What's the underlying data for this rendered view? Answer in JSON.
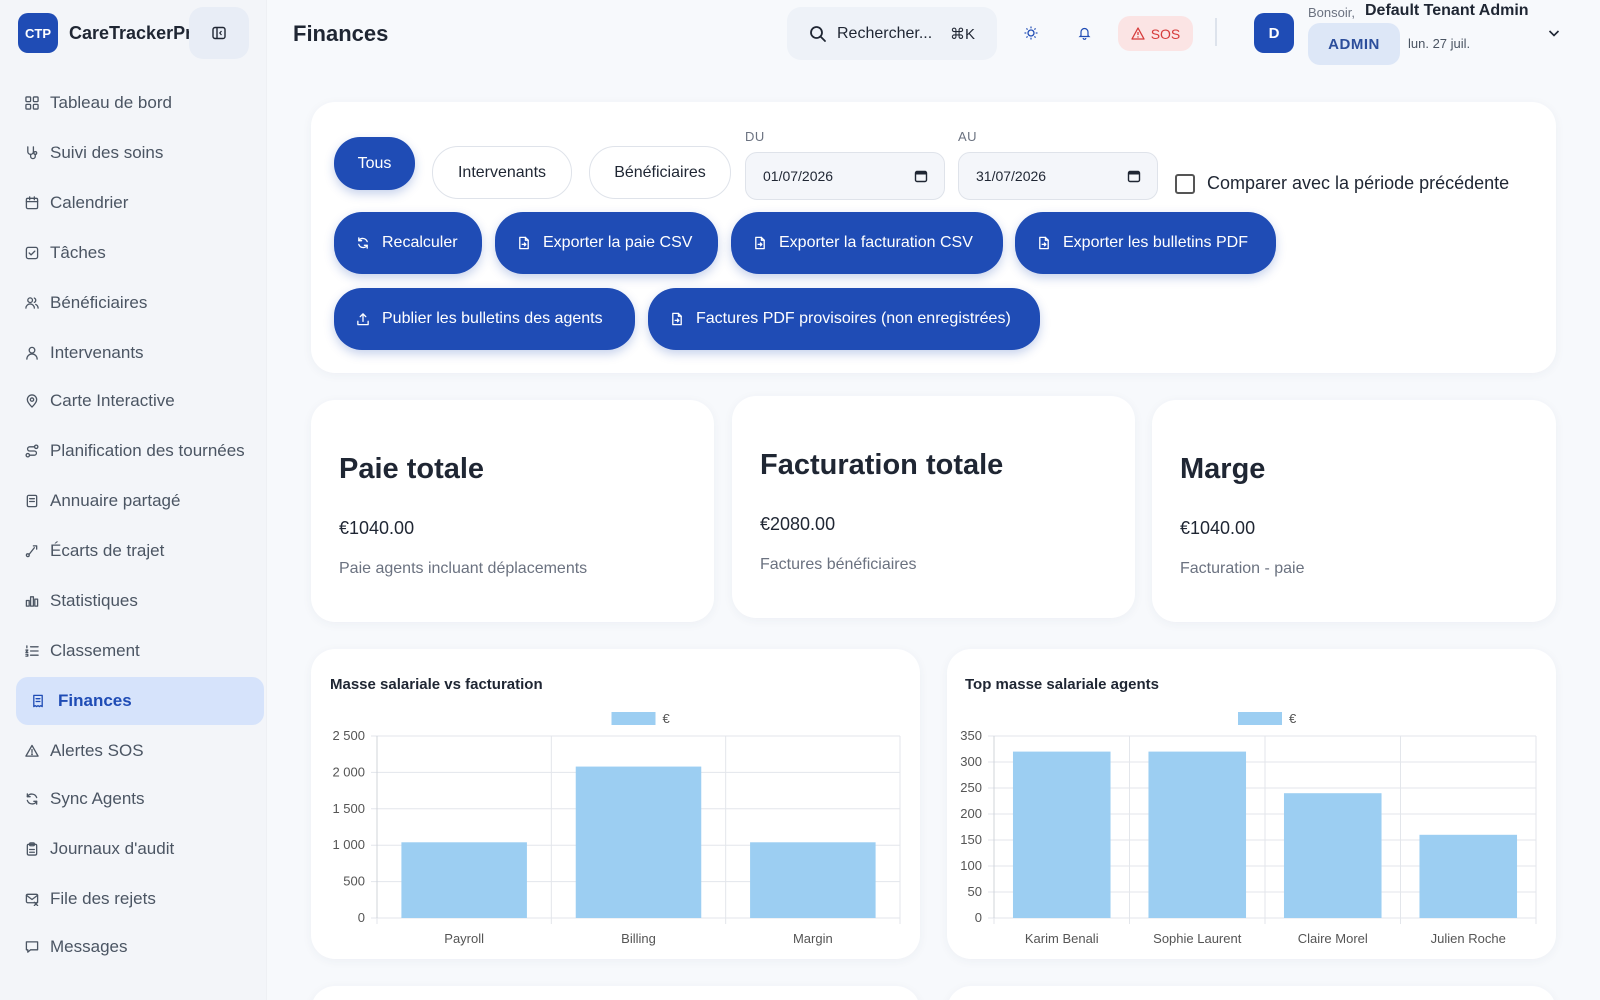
{
  "app": {
    "logo_text": "CTP",
    "name": "CareTrackerPro"
  },
  "page": {
    "title": "Finances"
  },
  "sidebar": {
    "items": [
      {
        "label": "Tableau de bord",
        "icon": "grid-icon"
      },
      {
        "label": "Suivi des soins",
        "icon": "stethoscope-icon"
      },
      {
        "label": "Calendrier",
        "icon": "calendar-icon"
      },
      {
        "label": "Tâches",
        "icon": "checklist-icon"
      },
      {
        "label": "Bénéficiaires",
        "icon": "users-icon"
      },
      {
        "label": "Intervenants",
        "icon": "user-icon"
      },
      {
        "label": "Carte Interactive",
        "icon": "map-pin-icon"
      },
      {
        "label": "Planification des tournées",
        "icon": "route-icon"
      },
      {
        "label": "Annuaire partagé",
        "icon": "book-icon"
      },
      {
        "label": "Écarts de trajet",
        "icon": "trajectory-icon"
      },
      {
        "label": "Statistiques",
        "icon": "bar-chart-icon"
      },
      {
        "label": "Classement",
        "icon": "list-ordered-icon"
      },
      {
        "label": "Finances",
        "icon": "receipt-icon",
        "active": true
      },
      {
        "label": "Alertes SOS",
        "icon": "alert-triangle-icon"
      },
      {
        "label": "Sync Agents",
        "icon": "sync-icon"
      },
      {
        "label": "Journaux d'audit",
        "icon": "clipboard-icon"
      },
      {
        "label": "File des rejets",
        "icon": "mail-x-icon"
      },
      {
        "label": "Messages",
        "icon": "message-icon"
      }
    ]
  },
  "header": {
    "search_placeholder": "Rechercher...",
    "search_shortcut": "⌘K",
    "sos_label": "SOS",
    "avatar_initial": "D",
    "greeting": "Bonsoir,",
    "user_name": "Default Tenant Admin",
    "role": "ADMIN",
    "date": "lun. 27 juil."
  },
  "filters": {
    "tabs": [
      "Tous",
      "Intervenants",
      "Bénéficiaires"
    ],
    "active_tab": "Tous",
    "from_label": "DU",
    "from_value": "01/07/2026",
    "to_label": "AU",
    "to_value": "31/07/2026",
    "compare_label": "Comparer avec la période précédente",
    "compare_checked": false
  },
  "actions": [
    {
      "label": "Recalculer",
      "icon": "refresh-icon"
    },
    {
      "label": "Exporter la paie CSV",
      "icon": "file-export-icon"
    },
    {
      "label": "Exporter la facturation CSV",
      "icon": "file-export-icon"
    },
    {
      "label": "Exporter les bulletins PDF",
      "icon": "file-export-icon"
    },
    {
      "label": "Publier les bulletins des agents",
      "icon": "upload-icon"
    },
    {
      "label": "Factures PDF provisoires (non enregistrées)",
      "icon": "file-export-icon"
    }
  ],
  "kpis": [
    {
      "title": "Paie totale",
      "value": "€1040.00",
      "subtitle": "Paie agents incluant déplacements"
    },
    {
      "title": "Facturation totale",
      "value": "€2080.00",
      "subtitle": "Factures bénéficiaires"
    },
    {
      "title": "Marge",
      "value": "€1040.00",
      "subtitle": "Facturation - paie"
    }
  ],
  "colors": {
    "primary": "#1f4cb5",
    "bar_fill": "#9ccef2",
    "sos_bg": "#fbe4e4",
    "sos_text": "#d63b3b",
    "active_nav_bg": "#d6e3fb"
  },
  "chart_data": [
    {
      "type": "bar",
      "title": "Masse salariale vs facturation",
      "categories": [
        "Payroll",
        "Billing",
        "Margin"
      ],
      "series": [
        {
          "name": "€",
          "values": [
            1040,
            2080,
            1040
          ]
        }
      ],
      "ylim": [
        0,
        2500
      ],
      "yticks": [
        "0",
        "500",
        "1 000",
        "1 500",
        "2 000",
        "2 500"
      ],
      "ytick_values": [
        0,
        500,
        1000,
        1500,
        2000,
        2500
      ],
      "grid": true,
      "legend": "top-center"
    },
    {
      "type": "bar",
      "title": "Top masse salariale agents",
      "categories": [
        "Karim Benali",
        "Sophie Laurent",
        "Claire Morel",
        "Julien Roche"
      ],
      "series": [
        {
          "name": "€",
          "values": [
            320,
            320,
            240,
            160
          ]
        }
      ],
      "ylim": [
        0,
        350
      ],
      "yticks": [
        "0",
        "50",
        "100",
        "150",
        "200",
        "250",
        "300",
        "350"
      ],
      "ytick_values": [
        0,
        50,
        100,
        150,
        200,
        250,
        300,
        350
      ],
      "grid": true,
      "legend": "top-center"
    }
  ]
}
